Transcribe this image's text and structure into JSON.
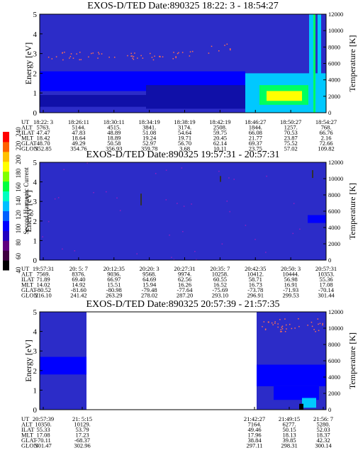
{
  "colors": {
    "bg": "#2c2cc8",
    "band_blue": "#0000ff",
    "band_dark": "#1010a8",
    "cyan": "#00c8ff",
    "green": "#00ff60",
    "yellow": "#ffff00",
    "red": "#ff0000",
    "purple": "#9020c0",
    "dots": "#ff7050"
  },
  "colorbar": {
    "label": "Second Harmonic Current",
    "ticks": [
      "40",
      "60",
      "80",
      "100",
      "120",
      "140",
      "160",
      "180",
      "200",
      "220",
      "240"
    ],
    "colors": [
      "#000000",
      "#400040",
      "#600080",
      "#2000c0",
      "#0000ff",
      "#0060ff",
      "#00c0ff",
      "#00ffc0",
      "#00ff40",
      "#80ff00",
      "#ffff00",
      "#ffc000",
      "#ff6000",
      "#ff0000"
    ]
  },
  "row_labels": [
    "UT",
    "ALT",
    "ILAT",
    "MLT",
    "GLAT",
    "GLON"
  ],
  "chart_data": [
    {
      "type": "heatmap",
      "title": "EXOS-D/TED   Date:890325  18:22: 3 - 18:54:27",
      "ylabel": "Energy [eV]",
      "y2label": "Temperature [K]",
      "ylim": [
        0,
        5
      ],
      "y2lim": [
        0,
        12000
      ],
      "yticks": [
        "0",
        "1",
        "2",
        "3",
        "4",
        "5"
      ],
      "y2ticks": [
        "0",
        "2000",
        "4000",
        "6000",
        "8000",
        "10000",
        "12000"
      ],
      "columns": [
        {
          "UT": "18:22: 3",
          "ALT": "5763.",
          "ILAT": "47.47",
          "MLT": "18.42",
          "GLAT": "48.70",
          "GLON": "352.85"
        },
        {
          "UT": "18:26:11",
          "ALT": "5144.",
          "ILAT": "47.83",
          "MLT": "18.64",
          "GLAT": "49.29",
          "GLON": "354.76"
        },
        {
          "UT": "18:30:11",
          "ALT": "4515.",
          "ILAT": "48.89",
          "MLT": "18.89",
          "GLAT": "50.58",
          "GLON": "356.93"
        },
        {
          "UT": "18:34:19",
          "ALT": "3841.",
          "ILAT": "51.08",
          "MLT": "19.24",
          "GLAT": "52.97",
          "GLON": "359.78"
        },
        {
          "UT": "18:38:19",
          "ALT": "3174.",
          "ILAT": "54.64",
          "MLT": "19.71",
          "GLAT": "56.70",
          "GLON": "3.68"
        },
        {
          "UT": "18:42:19",
          "ALT": "2508.",
          "ILAT": "59.75",
          "MLT": "20.45",
          "GLAT": "62.14",
          "GLON": "10.11"
        },
        {
          "UT": "18:46:27",
          "ALT": "1844.",
          "ILAT": "66.08",
          "MLT": "21.77",
          "GLAT": "69.37",
          "GLON": "23.75"
        },
        {
          "UT": "18:50:27",
          "ALT": "1257.",
          "ILAT": "70.53",
          "MLT": "23.87",
          "GLAT": "75.52",
          "GLON": "57.02"
        },
        {
          "UT": "18:54:27",
          "ALT": "768.",
          "ILAT": "66.76",
          "MLT": "2.16",
          "GLAT": "72.66",
          "GLON": "109.82"
        }
      ]
    },
    {
      "type": "heatmap",
      "title": "EXOS-D/TED   Date:890325  19:57:31 - 20:57:31",
      "ylabel": "Energy [eV]",
      "y2label": "Temperature [K]",
      "ylim": [
        0,
        5
      ],
      "y2lim": [
        0,
        12000
      ],
      "yticks": [
        "0",
        "1",
        "2",
        "3",
        "4",
        "5"
      ],
      "y2ticks": [
        "0",
        "2000",
        "4000",
        "6000",
        "8000",
        "10000",
        "12000"
      ],
      "columns": [
        {
          "UT": "19:57:31",
          "ALT": "7569.",
          "ILAT": "71.89",
          "MLT": "14.02",
          "GLAT": "-80.52",
          "GLON": "216.10"
        },
        {
          "UT": "20: 5: 7",
          "ALT": "8376.",
          "ILAT": "69.40",
          "MLT": "14.92",
          "GLAT": "-81.60",
          "GLON": "241.42"
        },
        {
          "UT": "20:12:35",
          "ALT": "9036.",
          "ILAT": "66.97",
          "MLT": "15.51",
          "GLAT": "-80.98",
          "GLON": "263.29"
        },
        {
          "UT": "20:20: 3",
          "ALT": "9568.",
          "ILAT": "64.69",
          "MLT": "15.94",
          "GLAT": "-79.48",
          "GLON": "278.02"
        },
        {
          "UT": "20:27:31",
          "ALT": "9974.",
          "ILAT": "62.56",
          "MLT": "16.26",
          "GLAT": "-77.64",
          "GLON": "287.20"
        },
        {
          "UT": "20:35: 7",
          "ALT": "10258.",
          "ILAT": "60.55",
          "MLT": "16.52",
          "GLAT": "-75.69",
          "GLON": "293.10"
        },
        {
          "UT": "20:42:35",
          "ALT": "10412.",
          "ILAT": "58.71",
          "MLT": "16.73",
          "GLAT": "-73.78",
          "GLON": "296.91"
        },
        {
          "UT": "20:50: 3",
          "ALT": "10444.",
          "ILAT": "56.98",
          "MLT": "16.91",
          "GLAT": "-71.93",
          "GLON": "299.53"
        },
        {
          "UT": "20:57:31",
          "ALT": "10353.",
          "ILAT": "55.36",
          "MLT": "17.08",
          "GLAT": "-70.14",
          "GLON": "301.44"
        }
      ]
    },
    {
      "type": "heatmap",
      "title": "EXOS-D/TED   Date:890325  20:57:39 - 21:57:35",
      "ylabel": "Energy [eV]",
      "y2label": "Temperature [K]",
      "ylim": [
        0,
        5
      ],
      "y2lim": [
        0,
        12000
      ],
      "yticks": [
        "0",
        "1",
        "2",
        "3",
        "4",
        "5"
      ],
      "y2ticks": [
        "0",
        "2000",
        "4000",
        "6000",
        "8000",
        "10000",
        "12000"
      ],
      "columns": [
        {
          "UT": "20:57:39",
          "ALT": "10350.",
          "ILAT": "55.33",
          "MLT": "17.08",
          "GLAT": "-70.11",
          "GLON": "301.47"
        },
        {
          "UT": "21: 5:15",
          "ALT": "10129.",
          "ILAT": "53.79",
          "MLT": "17.23",
          "GLAT": "-68.37",
          "GLON": "302.96"
        },
        {
          "UT": "21:42:27",
          "ALT": "7164.",
          "ILAT": "49.46",
          "MLT": "17.96",
          "GLAT": "38.84",
          "GLON": "297.11"
        },
        {
          "UT": "21:49:15",
          "ALT": "6277.",
          "ILAT": "50.15",
          "MLT": "18.13",
          "GLAT": "39.85",
          "GLON": "298.31"
        },
        {
          "UT": "21:56: 7",
          "ALT": "5280.",
          "ILAT": "52.03",
          "MLT": "18.37",
          "GLAT": "42.32",
          "GLON": "300.14"
        }
      ]
    }
  ]
}
